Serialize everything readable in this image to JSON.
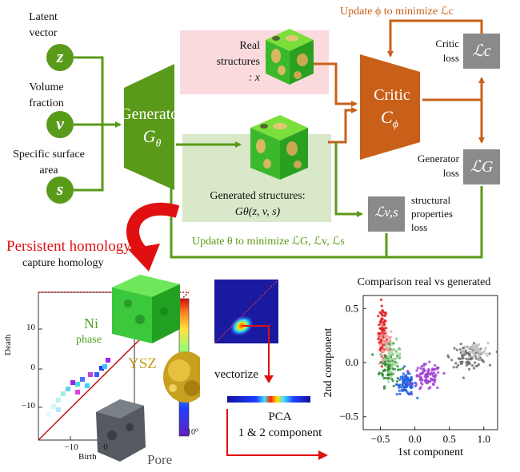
{
  "inputs": {
    "latent": {
      "label_line1": "Latent",
      "label_line2": "vector",
      "symbol": "z"
    },
    "volume": {
      "label_line1": "Volume",
      "label_line2": "fraction",
      "symbol": "v"
    },
    "surface": {
      "label_line1": "Specific surface",
      "label_line2": "area",
      "symbol": "s"
    }
  },
  "generator": {
    "title": "Generator",
    "symbol": "G",
    "subscript": "θ"
  },
  "critic": {
    "title": "Critic",
    "symbol": "C",
    "subscript": "ϕ"
  },
  "real_structures": {
    "line1": "Real",
    "line2": "structures",
    "line3": ": x"
  },
  "generated_structures": {
    "line1": "Generated structures:",
    "line2": "Gθ(z, v, s)"
  },
  "losses": {
    "critic": {
      "label_line1": "Critic",
      "label_line2": "loss",
      "symbol": "ℒc"
    },
    "generator": {
      "label_line1": "Generator",
      "label_line2": "loss",
      "symbol": "ℒG"
    },
    "structural": {
      "label_line1": "structural",
      "label_line2": "properties",
      "label_line3": "loss",
      "symbol": "ℒv,s"
    }
  },
  "update_phi": "Update ϕ to minimize ℒc",
  "update_theta": "Update θ to minimize ℒG, ℒv, ℒs",
  "persistent_homology": {
    "title": "Persistent homology",
    "subtitle": "capture homology"
  },
  "diagram_panel": {
    "ylabel": "Death",
    "xlabel": "Birth",
    "yticks": [
      "10",
      "0",
      "−10"
    ],
    "xticks": [
      "−10",
      "0"
    ],
    "phase_ni_line1": "Ni",
    "phase_ni_line2": "phase",
    "phase_ysz": "YSZ",
    "phase_pore": "Pore",
    "colorbar_min": "10⁰"
  },
  "vectorize_label": "vectorize",
  "pca_label_line1": "PCA",
  "pca_label_line2": "1 & 2 component",
  "colors": {
    "green": "#5a9a1a",
    "green_dark": "#4a8616",
    "orange": "#c8601a",
    "gray": "#8a8a8a",
    "red": "#e01010",
    "real_bg": "#fadadd",
    "gen_bg": "#d8e8c8"
  },
  "chart_data": {
    "type": "scatter",
    "title": "Comparison real vs generated",
    "xlabel": "1st component",
    "ylabel": "2nd component",
    "xlim": [
      -0.75,
      1.2
    ],
    "ylim": [
      -0.62,
      0.62
    ],
    "xticks": [
      "−0.5",
      "0.0",
      "0.5",
      "1.0"
    ],
    "yticks": [
      "0.5",
      "0.0",
      "−0.5"
    ],
    "series": [
      {
        "color": "#e02020",
        "cx": -0.47,
        "cy": 0.28,
        "sx": 0.03,
        "sy": 0.12,
        "n": 90
      },
      {
        "color": "#f0a0a0",
        "cx": -0.42,
        "cy": 0.14,
        "sx": 0.05,
        "sy": 0.1,
        "n": 60
      },
      {
        "color": "#2e8b2e",
        "cx": -0.37,
        "cy": -0.03,
        "sx": 0.07,
        "sy": 0.09,
        "n": 90
      },
      {
        "color": "#a0d8a0",
        "cx": -0.32,
        "cy": 0.06,
        "sx": 0.06,
        "sy": 0.07,
        "n": 50
      },
      {
        "color": "#2060e0",
        "cx": -0.12,
        "cy": -0.2,
        "sx": 0.07,
        "sy": 0.05,
        "n": 90
      },
      {
        "color": "#a040d0",
        "cx": 0.18,
        "cy": -0.14,
        "sx": 0.1,
        "sy": 0.06,
        "n": 90
      },
      {
        "color": "#707070",
        "cx": 0.78,
        "cy": 0.06,
        "sx": 0.13,
        "sy": 0.05,
        "n": 100
      },
      {
        "color": "#c0c0c0",
        "cx": 0.88,
        "cy": 0.1,
        "sx": 0.09,
        "sy": 0.04,
        "n": 50
      }
    ]
  }
}
